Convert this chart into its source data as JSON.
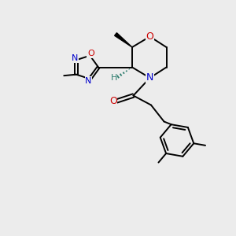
{
  "bg_color": "#ececec",
  "atom_colors": {
    "C": "#000000",
    "N": "#0000cc",
    "O": "#cc0000",
    "H": "#2e7d6e"
  },
  "bond_color": "#000000"
}
